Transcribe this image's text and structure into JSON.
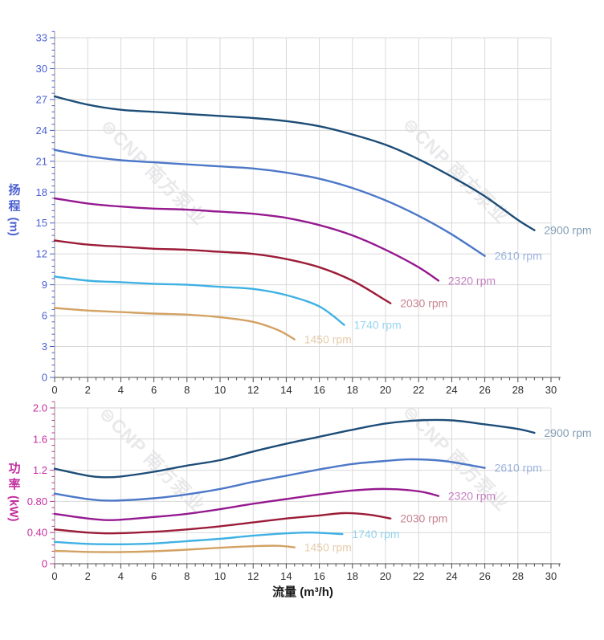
{
  "watermark": {
    "text": "⊜CNP 南方泵业",
    "color": "#e8e8ec"
  },
  "chart_data": [
    {
      "id": "head",
      "type": "line",
      "title": "",
      "xlabel": "",
      "ylabel": "扬程 (m)",
      "ylabel_chars": "扬程",
      "ylabel_unit": "(m)",
      "axis_color": "#4a5fd2",
      "x_tick_color": "#2e2e2e",
      "grid": true,
      "legend": "labels-at-curve-ends",
      "xlim": [
        0,
        30
      ],
      "ylim": [
        0,
        33
      ],
      "x_ticks": [
        0,
        2,
        4,
        6,
        8,
        10,
        12,
        14,
        16,
        18,
        20,
        22,
        24,
        26,
        28,
        30
      ],
      "x_tick_labels": [
        "0",
        "2",
        "4",
        "6",
        "8",
        "10",
        "12",
        "14",
        "16",
        "18",
        "20",
        "22",
        "24",
        "26",
        "28",
        "30"
      ],
      "y_ticks": [
        0,
        3,
        6,
        9,
        12,
        15,
        18,
        21,
        24,
        27,
        30,
        33
      ],
      "y_tick_labels": [
        "0",
        "3",
        "6",
        "9",
        "12",
        "15",
        "18",
        "21",
        "24",
        "27",
        "30",
        "33"
      ],
      "x_minor_step": 0.5,
      "y_minor_step": 0.6,
      "series": [
        {
          "name": "2900 rpm",
          "color": "#1d4d77",
          "points": [
            [
              0,
              27.3
            ],
            [
              2,
              26.5
            ],
            [
              4,
              26.0
            ],
            [
              6,
              25.8
            ],
            [
              8,
              25.6
            ],
            [
              10,
              25.4
            ],
            [
              12,
              25.2
            ],
            [
              14,
              24.9
            ],
            [
              16,
              24.4
            ],
            [
              18,
              23.6
            ],
            [
              20,
              22.6
            ],
            [
              22,
              21.2
            ],
            [
              24,
              19.5
            ],
            [
              26,
              17.6
            ],
            [
              28,
              15.3
            ],
            [
              29,
              14.3
            ]
          ]
        },
        {
          "name": "2610 rpm",
          "color": "#4c78c8",
          "points": [
            [
              0,
              22.1
            ],
            [
              2,
              21.5
            ],
            [
              4,
              21.1
            ],
            [
              6,
              20.9
            ],
            [
              8,
              20.7
            ],
            [
              10,
              20.5
            ],
            [
              12,
              20.3
            ],
            [
              14,
              19.9
            ],
            [
              16,
              19.3
            ],
            [
              18,
              18.4
            ],
            [
              20,
              17.2
            ],
            [
              22,
              15.7
            ],
            [
              24,
              13.9
            ],
            [
              26,
              11.8
            ]
          ]
        },
        {
          "name": "2320 rpm",
          "color": "#951a90",
          "points": [
            [
              0,
              17.4
            ],
            [
              2,
              16.9
            ],
            [
              4,
              16.6
            ],
            [
              6,
              16.4
            ],
            [
              8,
              16.3
            ],
            [
              10,
              16.1
            ],
            [
              12,
              15.9
            ],
            [
              14,
              15.5
            ],
            [
              16,
              14.8
            ],
            [
              18,
              13.8
            ],
            [
              20,
              12.4
            ],
            [
              22,
              10.7
            ],
            [
              23.2,
              9.4
            ]
          ]
        },
        {
          "name": "2030 rpm",
          "color": "#9c1c38",
          "points": [
            [
              0,
              13.3
            ],
            [
              2,
              12.9
            ],
            [
              4,
              12.7
            ],
            [
              6,
              12.5
            ],
            [
              8,
              12.4
            ],
            [
              10,
              12.2
            ],
            [
              12,
              12.0
            ],
            [
              14,
              11.5
            ],
            [
              16,
              10.7
            ],
            [
              18,
              9.4
            ],
            [
              20,
              7.5
            ],
            [
              20.3,
              7.2
            ]
          ]
        },
        {
          "name": "1740 rpm",
          "color": "#3fb1e3",
          "points": [
            [
              0,
              9.8
            ],
            [
              2,
              9.4
            ],
            [
              4,
              9.25
            ],
            [
              6,
              9.1
            ],
            [
              8,
              9.0
            ],
            [
              10,
              8.8
            ],
            [
              12,
              8.6
            ],
            [
              14,
              8.0
            ],
            [
              16,
              6.9
            ],
            [
              17.5,
              5.1
            ]
          ]
        },
        {
          "name": "1450 rpm",
          "color": "#d3a263",
          "points": [
            [
              0,
              6.75
            ],
            [
              2,
              6.5
            ],
            [
              4,
              6.35
            ],
            [
              6,
              6.2
            ],
            [
              8,
              6.1
            ],
            [
              10,
              5.85
            ],
            [
              12,
              5.4
            ],
            [
              13.5,
              4.6
            ],
            [
              14.5,
              3.7
            ]
          ]
        }
      ]
    },
    {
      "id": "power",
      "type": "line",
      "title": "",
      "xlabel": "流量 (m³/h)",
      "ylabel": "功率 (kW)",
      "ylabel_chars": "功率",
      "ylabel_unit": "(kW)",
      "axis_color": "#c42f9e",
      "x_tick_color": "#2e2e2e",
      "grid": true,
      "legend": "labels-at-curve-ends",
      "xlim": [
        0,
        30
      ],
      "ylim": [
        0,
        2
      ],
      "x_ticks": [
        0,
        2,
        4,
        6,
        8,
        10,
        12,
        14,
        16,
        18,
        20,
        22,
        24,
        26,
        28,
        30
      ],
      "x_tick_labels": [
        "0",
        "2",
        "4",
        "6",
        "8",
        "10",
        "12",
        "14",
        "16",
        "18",
        "20",
        "22",
        "24",
        "26",
        "28",
        "30"
      ],
      "y_ticks": [
        0,
        0.4,
        0.8,
        1.2,
        1.6,
        2.0
      ],
      "y_tick_labels": [
        "0",
        "0.40",
        "0.80",
        "1.2",
        "1.6",
        "2.0"
      ],
      "x_minor_step": 0.5,
      "y_minor_step": 0.08,
      "series": [
        {
          "name": "2900 rpm",
          "color": "#1d4d77",
          "points": [
            [
              0,
              1.22
            ],
            [
              2,
              1.13
            ],
            [
              3,
              1.11
            ],
            [
              4,
              1.12
            ],
            [
              6,
              1.18
            ],
            [
              8,
              1.26
            ],
            [
              10,
              1.33
            ],
            [
              12,
              1.44
            ],
            [
              14,
              1.54
            ],
            [
              16,
              1.63
            ],
            [
              18,
              1.72
            ],
            [
              20,
              1.8
            ],
            [
              22,
              1.84
            ],
            [
              24,
              1.84
            ],
            [
              26,
              1.79
            ],
            [
              28,
              1.73
            ],
            [
              29,
              1.68
            ]
          ]
        },
        {
          "name": "2610 rpm",
          "color": "#4c78c8",
          "points": [
            [
              0,
              0.9
            ],
            [
              2,
              0.83
            ],
            [
              3.5,
              0.81
            ],
            [
              6,
              0.84
            ],
            [
              8,
              0.89
            ],
            [
              10,
              0.96
            ],
            [
              12,
              1.05
            ],
            [
              14,
              1.13
            ],
            [
              16,
              1.21
            ],
            [
              18,
              1.28
            ],
            [
              20,
              1.32
            ],
            [
              21.5,
              1.34
            ],
            [
              23.5,
              1.32
            ],
            [
              26,
              1.23
            ]
          ]
        },
        {
          "name": "2320 rpm",
          "color": "#951a90",
          "points": [
            [
              0,
              0.64
            ],
            [
              2,
              0.58
            ],
            [
              3.5,
              0.56
            ],
            [
              6,
              0.6
            ],
            [
              8,
              0.64
            ],
            [
              10,
              0.7
            ],
            [
              12,
              0.77
            ],
            [
              14,
              0.83
            ],
            [
              16,
              0.89
            ],
            [
              18,
              0.94
            ],
            [
              20,
              0.96
            ],
            [
              22,
              0.93
            ],
            [
              23.2,
              0.87
            ]
          ]
        },
        {
          "name": "2030 rpm",
          "color": "#9c1c38",
          "points": [
            [
              0,
              0.44
            ],
            [
              2,
              0.4
            ],
            [
              3.5,
              0.39
            ],
            [
              6,
              0.41
            ],
            [
              8,
              0.44
            ],
            [
              10,
              0.48
            ],
            [
              12,
              0.53
            ],
            [
              14,
              0.58
            ],
            [
              16,
              0.62
            ],
            [
              17.5,
              0.65
            ],
            [
              19,
              0.63
            ],
            [
              20.3,
              0.58
            ]
          ]
        },
        {
          "name": "1740 rpm",
          "color": "#3fb1e3",
          "points": [
            [
              0,
              0.28
            ],
            [
              2,
              0.255
            ],
            [
              4,
              0.25
            ],
            [
              6,
              0.26
            ],
            [
              8,
              0.29
            ],
            [
              10,
              0.32
            ],
            [
              12,
              0.36
            ],
            [
              14,
              0.39
            ],
            [
              15.5,
              0.4
            ],
            [
              17.4,
              0.38
            ]
          ]
        },
        {
          "name": "1450 rpm",
          "color": "#d3a263",
          "points": [
            [
              0,
              0.165
            ],
            [
              2,
              0.152
            ],
            [
              4,
              0.15
            ],
            [
              6,
              0.16
            ],
            [
              8,
              0.18
            ],
            [
              10,
              0.205
            ],
            [
              12,
              0.225
            ],
            [
              13.5,
              0.23
            ],
            [
              14.5,
              0.21
            ]
          ]
        }
      ]
    }
  ]
}
